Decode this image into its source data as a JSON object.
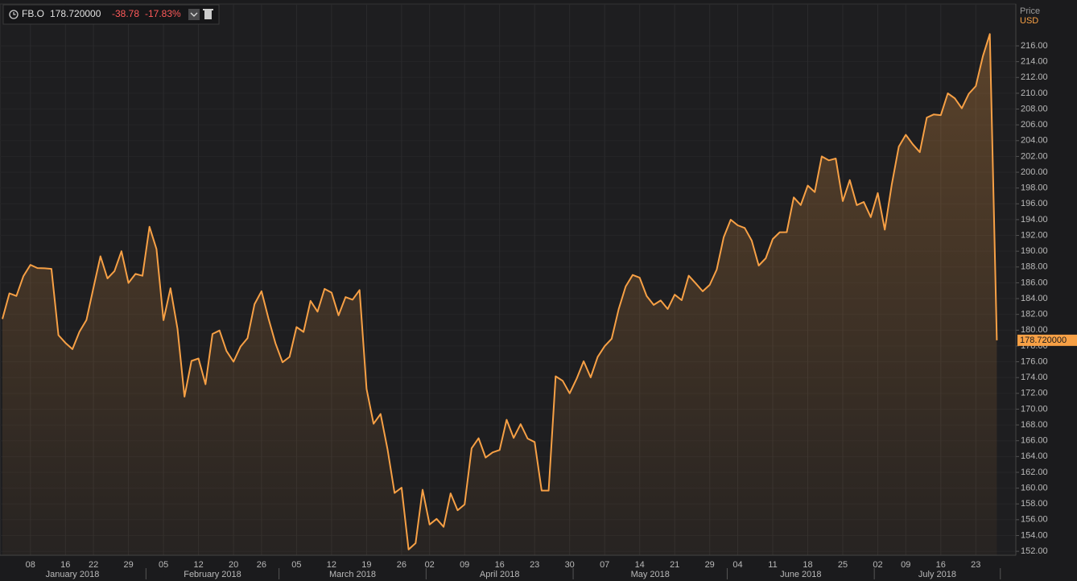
{
  "chart_data": {
    "type": "area",
    "instrument": "FB.O",
    "last": {
      "value": 178.72,
      "label": "178.720000"
    },
    "change": -38.78,
    "change_pct": {
      "value": -17.83,
      "label": "-17.83%"
    },
    "y_axis_title": "Price",
    "currency": "USD",
    "color": "#f7a045",
    "grid": true,
    "categories": [
      null,
      null,
      null,
      null,
      "08",
      null,
      null,
      null,
      null,
      "16",
      null,
      null,
      null,
      "22",
      null,
      null,
      null,
      null,
      "29",
      null,
      null,
      null,
      null,
      "05",
      null,
      null,
      null,
      null,
      "12",
      null,
      null,
      null,
      null,
      "20",
      null,
      null,
      null,
      "26",
      null,
      null,
      null,
      null,
      "05",
      null,
      null,
      null,
      null,
      "12",
      null,
      null,
      null,
      null,
      "19",
      null,
      null,
      null,
      null,
      "26",
      null,
      null,
      null,
      "02",
      null,
      null,
      null,
      null,
      "09",
      null,
      null,
      null,
      null,
      "16",
      null,
      null,
      null,
      null,
      "23",
      null,
      null,
      null,
      null,
      "30",
      null,
      null,
      null,
      null,
      "07",
      null,
      null,
      null,
      null,
      "14",
      null,
      null,
      null,
      null,
      "21",
      null,
      null,
      null,
      null,
      "29",
      null,
      null,
      null,
      "04",
      null,
      null,
      null,
      null,
      "11",
      null,
      null,
      null,
      null,
      "18",
      null,
      null,
      null,
      null,
      "25",
      null,
      null,
      null,
      null,
      "02",
      null,
      null,
      null,
      "09",
      null,
      null,
      null,
      null,
      "16",
      null,
      null,
      null,
      null,
      "23",
      null,
      null,
      null
    ],
    "x_groups": [
      {
        "label": "January 2018",
        "span": 21
      },
      {
        "label": "February 2018",
        "span": 19
      },
      {
        "label": "March 2018",
        "span": 21
      },
      {
        "label": "April 2018",
        "span": 21
      },
      {
        "label": "May 2018",
        "span": 22
      },
      {
        "label": "June 2018",
        "span": 21
      },
      {
        "label": "July 2018",
        "span": 18
      }
    ],
    "values": [
      181.42,
      184.67,
      184.33,
      186.85,
      188.28,
      187.87,
      187.84,
      187.77,
      179.37,
      178.39,
      177.6,
      179.8,
      181.29,
      185.37,
      189.35,
      186.55,
      187.48,
      190.0,
      185.98,
      187.12,
      186.89,
      193.09,
      190.28,
      181.26,
      185.31,
      180.18,
      171.58,
      176.11,
      176.41,
      173.15,
      179.52,
      179.96,
      177.36,
      176.01,
      177.91,
      178.99,
      183.29,
      184.93,
      181.46,
      178.32,
      175.94,
      176.62,
      180.4,
      179.78,
      183.71,
      182.34,
      185.23,
      184.76,
      181.88,
      184.19,
      183.86,
      185.09,
      172.56,
      168.15,
      169.39,
      164.89,
      159.39,
      160.06,
      152.22,
      153.03,
      159.79,
      155.39,
      156.11,
      155.1,
      159.34,
      157.2,
      157.93,
      165.04,
      166.32,
      163.87,
      164.52,
      164.83,
      168.66,
      166.36,
      168.1,
      166.28,
      165.84,
      159.69,
      159.69,
      174.16,
      173.59,
      172.0,
      173.86,
      176.07,
      174.02,
      176.61,
      177.97,
      178.92,
      182.66,
      185.53,
      186.99,
      186.64,
      184.32,
      183.2,
      183.76,
      182.68,
      184.49,
      183.8,
      186.9,
      185.93,
      184.92,
      185.74,
      187.67,
      191.78,
      193.99,
      193.28,
      192.94,
      191.34,
      188.18,
      189.1,
      191.54,
      192.4,
      192.41,
      196.81,
      195.85,
      198.31,
      197.49,
      202.0,
      201.5,
      201.74,
      196.35,
      199.0,
      195.84,
      196.23,
      194.32,
      197.36,
      192.73,
      198.45,
      203.23,
      204.74,
      203.54,
      202.54,
      206.92,
      207.32,
      207.23,
      209.99,
      209.36,
      208.09,
      209.94,
      210.91,
      214.67,
      217.5,
      178.72
    ],
    "ylim": [
      151.5,
      221.3
    ],
    "yticks": [
      {
        "value": 152,
        "label": "152.00"
      },
      {
        "value": 154,
        "label": "154.00"
      },
      {
        "value": 156,
        "label": "156.00"
      },
      {
        "value": 158,
        "label": "158.00"
      },
      {
        "value": 160,
        "label": "160.00"
      },
      {
        "value": 162,
        "label": "162.00"
      },
      {
        "value": 164,
        "label": "164.00"
      },
      {
        "value": 166,
        "label": "166.00"
      },
      {
        "value": 168,
        "label": "168.00"
      },
      {
        "value": 170,
        "label": "170.00"
      },
      {
        "value": 172,
        "label": "172.00"
      },
      {
        "value": 174,
        "label": "174.00"
      },
      {
        "value": 176,
        "label": "176.00"
      },
      {
        "value": 178,
        "label": "178.00"
      },
      {
        "value": 180,
        "label": "180.00"
      },
      {
        "value": 182,
        "label": "182.00"
      },
      {
        "value": 184,
        "label": "184.00"
      },
      {
        "value": 186,
        "label": "186.00"
      },
      {
        "value": 188,
        "label": "188.00"
      },
      {
        "value": 190,
        "label": "190.00"
      },
      {
        "value": 192,
        "label": "192.00"
      },
      {
        "value": 194,
        "label": "194.00"
      },
      {
        "value": 196,
        "label": "196.00"
      },
      {
        "value": 198,
        "label": "198.00"
      },
      {
        "value": 200,
        "label": "200.00"
      },
      {
        "value": 202,
        "label": "202.00"
      },
      {
        "value": 204,
        "label": "204.00"
      },
      {
        "value": 206,
        "label": "206.00"
      },
      {
        "value": 208,
        "label": "208.00"
      },
      {
        "value": 210,
        "label": "210.00"
      },
      {
        "value": 212,
        "label": "212.00"
      },
      {
        "value": 214,
        "label": "214.00"
      },
      {
        "value": 216,
        "label": "216.00"
      }
    ]
  }
}
